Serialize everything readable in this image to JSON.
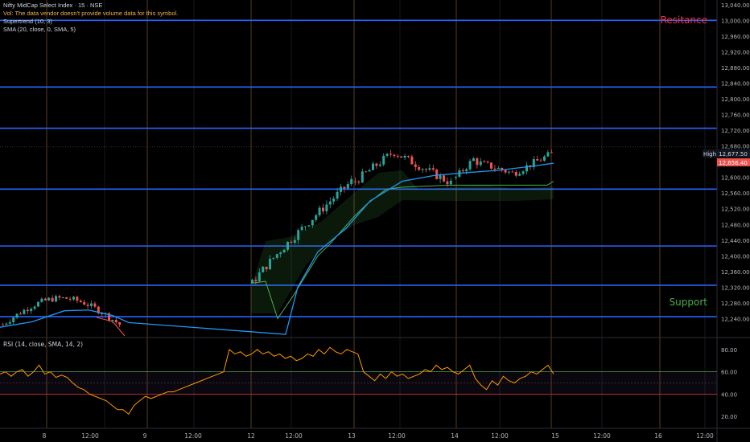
{
  "header": {
    "symbol": "Nifty MidCap Select Index · 15 · NSE",
    "volume_note": "Vol: The data vendor doesn't provide volume data for this symbol.",
    "supertrend": "Supertrend (10, 3)",
    "sma": "SMA (20, close, 0, SMA, 5)"
  },
  "rsi_label": "RSI (14, close, SMA, 14, 2)",
  "annotations": {
    "resistance": "Resitance",
    "support": "Support"
  },
  "price_badges": {
    "high_label": "High",
    "high_value": "12,677.50",
    "last_value": "12,656.40"
  },
  "colors": {
    "background": "#000000",
    "level_line": "#2962ff",
    "candle_up": "#26a69a",
    "candle_down": "#ef5350",
    "sma": "#2196f3",
    "supertrend": "#4caf50",
    "rsi": "#ff9800",
    "resistance_text": "#f23645",
    "support_text": "#4caf50"
  },
  "price_axis": {
    "min": 12200,
    "max": 13060,
    "ticks": [
      "13,040.00",
      "13,000.00",
      "12,960.00",
      "12,920.00",
      "12,880.00",
      "12,840.00",
      "12,800.00",
      "12,760.00",
      "12,720.00",
      "12,680.00",
      "12,640.00",
      "12,600.00",
      "12,560.00",
      "12,520.00",
      "12,480.00",
      "12,440.00",
      "12,400.00",
      "12,360.00",
      "12,320.00",
      "12,280.00",
      "12,240.00"
    ]
  },
  "rsi_axis": {
    "ticks": [
      "80.00",
      "60.00",
      "40.00",
      "20.00"
    ],
    "upper_band": 60,
    "lower_band": 40
  },
  "time_axis": {
    "labels": [
      "8",
      "12:00",
      "9",
      "12:00",
      "12",
      "12:00",
      "13",
      "12:00",
      "14",
      "12:00",
      "15",
      "12:00",
      "16",
      "12:00"
    ]
  },
  "chart_data": {
    "type": "candlestick",
    "series": "Nifty MidCap Select Index, 15 minute",
    "horizontal_levels": [
      13000,
      12830,
      12725,
      12570,
      12425,
      12325,
      12245
    ],
    "high": 12677.5,
    "last": 12656.4,
    "rsi_range": [
      0,
      100
    ],
    "sessions": [
      "8",
      "9",
      "12",
      "13",
      "14",
      "15"
    ]
  }
}
